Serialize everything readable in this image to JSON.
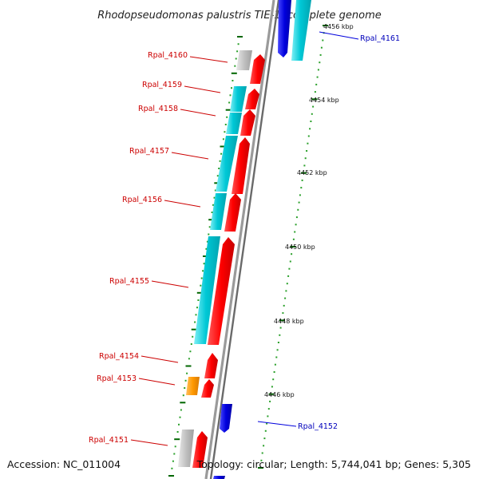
{
  "title": "Rhodopseudomonas palustris TIE-1, complete genome",
  "footer": {
    "accession": "Accession: NC_011004",
    "topology": "Topology: circular; Length: 5,744,041 bp; Genes: 5,305"
  },
  "scale": [
    {
      "label": "4456 kbp"
    },
    {
      "label": "4454 kbp"
    },
    {
      "label": "4452 kbp"
    },
    {
      "label": "4450 kbp"
    },
    {
      "label": "4448 kbp"
    },
    {
      "label": "4446 kbp"
    }
  ],
  "genes": [
    {
      "label": "Rpal_4161",
      "strand": "forward"
    },
    {
      "label": "Rpal_4160",
      "strand": "reverse"
    },
    {
      "label": "Rpal_4159",
      "strand": "reverse"
    },
    {
      "label": "Rpal_4158",
      "strand": "reverse"
    },
    {
      "label": "Rpal_4157",
      "strand": "reverse"
    },
    {
      "label": "Rpal_4156",
      "strand": "reverse"
    },
    {
      "label": "Rpal_4155",
      "strand": "reverse"
    },
    {
      "label": "Rpal_4154",
      "strand": "reverse"
    },
    {
      "label": "Rpal_4153",
      "strand": "reverse"
    },
    {
      "label": "Rpal_4152",
      "strand": "forward"
    },
    {
      "label": "Rpal_4151",
      "strand": "reverse"
    }
  ],
  "colors": {
    "cds": "#ff0000",
    "gene_cyan": "#00c8d6",
    "gene_gray": "#c0c0c0",
    "gene_orange": "#ff9900",
    "forward_gene": "#0000dd",
    "backbone": "#999999",
    "tick_major": "#006600",
    "tick_minor": "#2aa02a"
  }
}
